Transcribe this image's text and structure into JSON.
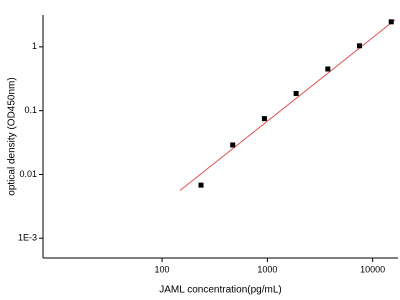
{
  "chart_data": {
    "type": "scatter",
    "x_label": "JAML concentration(pg/mL)",
    "y_label": "optical density (OD450nm)",
    "x_log": true,
    "y_log": true,
    "xlim": [
      7.4,
      17400
    ],
    "ylim": [
      0.00049,
      3.16
    ],
    "xticks": [
      100,
      1000,
      10000
    ],
    "yticks": [
      {
        "value": 0.001,
        "label": "1E-3"
      },
      0.01,
      0.1,
      1
    ],
    "series": [
      {
        "color": "#000000",
        "x": [
          234.375,
          468.75,
          937.5,
          1875,
          3750,
          7500,
          15000
        ],
        "values": [
          0.0068,
          0.029,
          0.075,
          0.186,
          0.45,
          1.04,
          2.47
        ]
      }
    ],
    "fit_line": {
      "color": "#e05050",
      "x": [
        148,
        16300
      ],
      "values": [
        0.0056,
        2.65
      ]
    }
  }
}
